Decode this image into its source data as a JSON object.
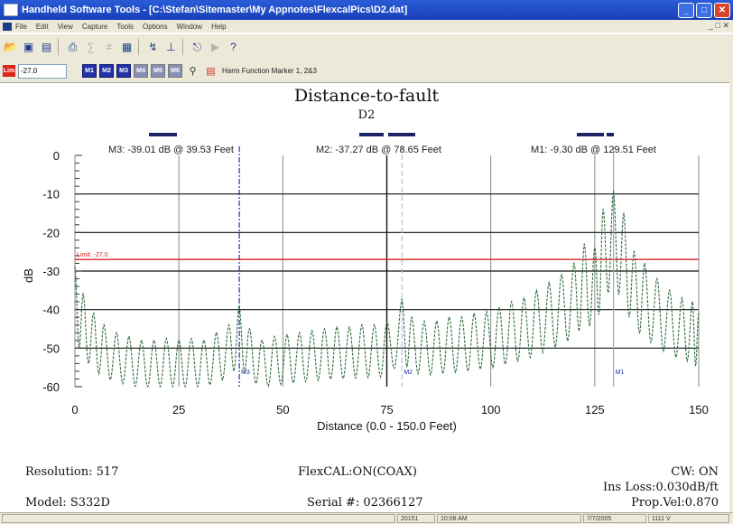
{
  "window": {
    "title": "Handheld Software Tools - [C:\\Stefan\\Sitemaster\\My Appnotes\\FlexcalPics\\D2.dat]"
  },
  "menu": {
    "items": [
      "File",
      "Edit",
      "View",
      "Capture",
      "Tools",
      "Options",
      "Window",
      "Help"
    ]
  },
  "toolbar2": {
    "limit_label": "Lim",
    "limit_value": "-27.0",
    "marker_buttons": [
      "M1",
      "M2",
      "M3",
      "M4",
      "M5",
      "M6"
    ],
    "hm_label": "Harm Function Marker 1, 2&3"
  },
  "chart_data": {
    "type": "line",
    "title": "Distance-to-fault",
    "subtitle": "D2",
    "xlabel": "Distance (0.0 - 150.0 Feet)",
    "ylabel": "dB",
    "xlim": [
      0,
      150
    ],
    "ylim": [
      -60,
      0
    ],
    "x_ticks": [
      0,
      25,
      50,
      75,
      100,
      125,
      150
    ],
    "y_ticks": [
      0,
      -10,
      -20,
      -30,
      -40,
      -50,
      -60
    ],
    "limit_line": {
      "value": -27.0,
      "label": "Limit: -27.0",
      "color": "#e02020"
    },
    "trace_color": "#2f6b3a",
    "markers": [
      {
        "name": "M1",
        "x": 129.51,
        "y": -9.3,
        "label": "M1: -9.30 dB @ 129.51 Feet"
      },
      {
        "name": "M2",
        "x": 78.65,
        "y": -37.27,
        "label": "M2: -37.27 dB @ 78.65 Feet"
      },
      {
        "name": "M3",
        "x": 39.53,
        "y": -39.01,
        "label": "M3: -39.01 dB @ 39.53 Feet"
      }
    ],
    "series": [
      {
        "peaks": [
          [
            0,
            -29
          ],
          [
            2,
            -36
          ],
          [
            4.5,
            -41
          ],
          [
            7,
            -44
          ],
          [
            10,
            -46
          ],
          [
            13,
            -47
          ],
          [
            16,
            -48
          ],
          [
            19,
            -48
          ],
          [
            22,
            -47.5
          ],
          [
            25,
            -48
          ],
          [
            28,
            -47.5
          ],
          [
            31,
            -48
          ],
          [
            34,
            -46
          ],
          [
            37,
            -44
          ],
          [
            39.5,
            -39
          ],
          [
            42,
            -45
          ],
          [
            45,
            -48
          ],
          [
            48,
            -47
          ],
          [
            51,
            -46.5
          ],
          [
            54,
            -46
          ],
          [
            57,
            -45.5
          ],
          [
            60,
            -45
          ],
          [
            63,
            -44.5
          ],
          [
            66,
            -44.5
          ],
          [
            69,
            -44
          ],
          [
            72,
            -44
          ],
          [
            75,
            -43.5
          ],
          [
            78.65,
            -37.3
          ],
          [
            81,
            -42
          ],
          [
            84,
            -43
          ],
          [
            87,
            -43
          ],
          [
            90,
            -42
          ],
          [
            93,
            -42
          ],
          [
            96,
            -41
          ],
          [
            99,
            -40.5
          ],
          [
            102,
            -39.5
          ],
          [
            105,
            -38
          ],
          [
            108,
            -37
          ],
          [
            111,
            -35
          ],
          [
            114,
            -33
          ],
          [
            117,
            -31
          ],
          [
            120,
            -28
          ],
          [
            122.5,
            -23
          ],
          [
            125,
            -24
          ],
          [
            127,
            -14
          ],
          [
            129.5,
            -9.3
          ],
          [
            132,
            -15
          ],
          [
            134.5,
            -25
          ],
          [
            137,
            -28
          ],
          [
            140,
            -32
          ],
          [
            143,
            -35
          ],
          [
            146,
            -37
          ],
          [
            148.5,
            -38
          ],
          [
            150,
            -41
          ]
        ]
      }
    ]
  },
  "footer": {
    "resolution": "Resolution: 517",
    "flexcal": "FlexCAL:ON(COAX)",
    "cw": "CW: ON",
    "ins_loss": "Ins Loss:0.030dB/ft",
    "model": "Model: S332D",
    "serial": "Serial #: 02366127",
    "prop_vel": "Prop.Vel:0.870"
  },
  "status": {
    "pane2": "20151",
    "pane3": "10:08 AM",
    "pane4": "7/7/2005",
    "pane5": "1111 V"
  }
}
